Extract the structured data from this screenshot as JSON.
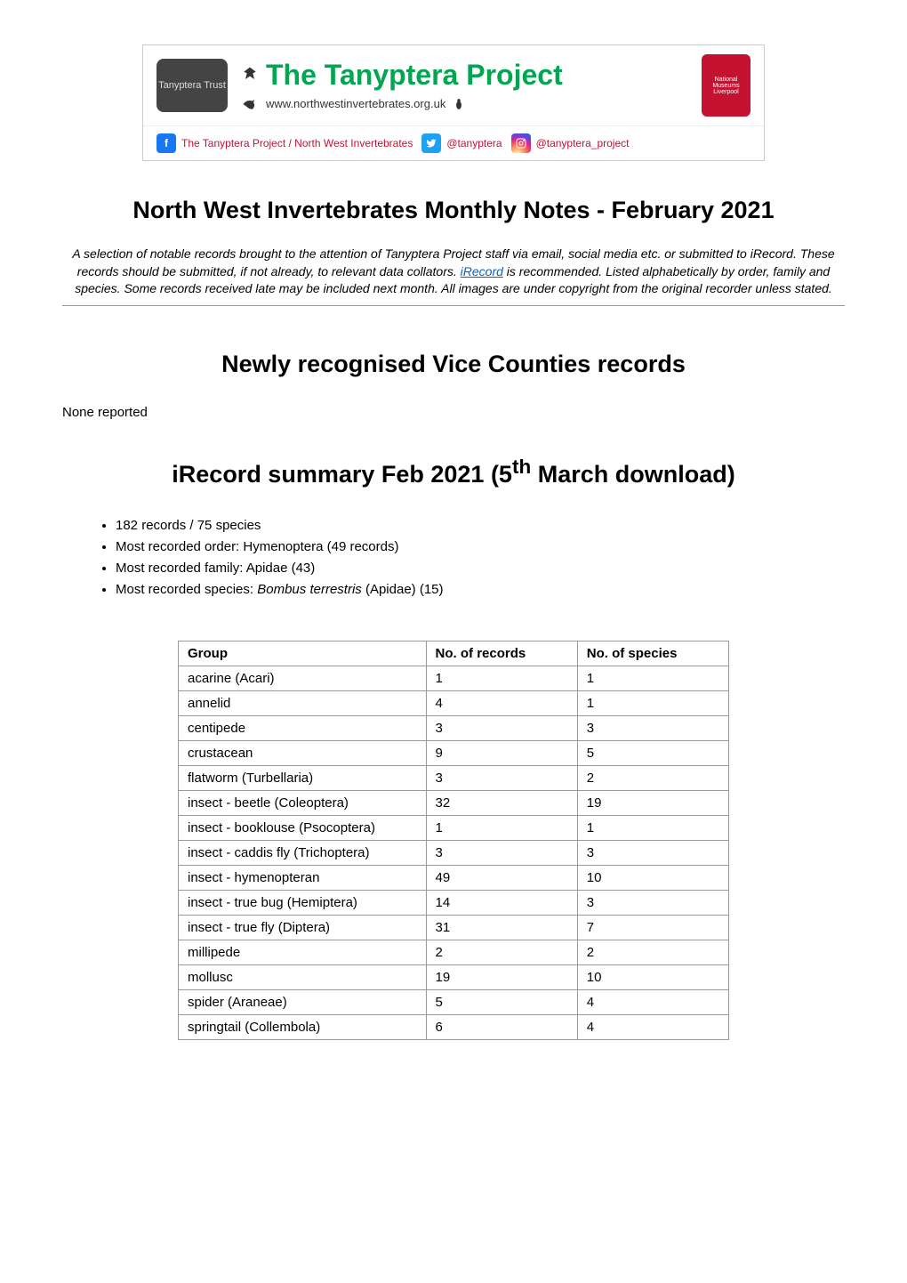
{
  "banner": {
    "logo_left_text": "Tanyptera Trust",
    "project_title": "The Tanyptera Project",
    "website_url": "www.northwestinvertebrates.org.uk",
    "social": {
      "facebook": "The Tanyptera Project / North West Invertebrates",
      "twitter": "@tanyptera",
      "instagram": "@tanyptera_project"
    },
    "logo_right_text": "National Museums Liverpool"
  },
  "main_title": "North West Invertebrates Monthly Notes - February 2021",
  "intro_text_1": "A selection of notable records brought to the attention of Tanyptera Project staff via email, social media etc. or submitted to iRecord. These records should be submitted, if not already, to relevant data collators. ",
  "intro_link_text": "iRecord",
  "intro_text_2": " is recommended. Listed alphabetically by order, family and species. Some records received late may be included next month. All images are under copyright from the original recorder unless stated.",
  "section_vice_counties": {
    "heading": "Newly recognised Vice Counties records",
    "body": "None reported"
  },
  "section_irecord": {
    "heading_prefix": "iRecord summary Feb 2021 (5",
    "heading_super": "th",
    "heading_suffix": " March download)",
    "bullets": [
      "182 records / 75 species",
      "Most recorded order: Hymenoptera (49 records)",
      "Most recorded family: Apidae (43)"
    ],
    "bullet_species_prefix": "Most recorded species: ",
    "bullet_species_italic": "Bombus terrestris",
    "bullet_species_suffix": " (Apidae) (15)"
  },
  "table": {
    "columns": [
      "Group",
      "No. of records",
      "No. of species"
    ],
    "rows": [
      [
        "acarine (Acari)",
        "1",
        "1"
      ],
      [
        "annelid",
        "4",
        "1"
      ],
      [
        "centipede",
        "3",
        "3"
      ],
      [
        "crustacean",
        "9",
        "5"
      ],
      [
        "flatworm (Turbellaria)",
        "3",
        "2"
      ],
      [
        "insect - beetle (Coleoptera)",
        "32",
        "19"
      ],
      [
        "insect - booklouse (Psocoptera)",
        "1",
        "1"
      ],
      [
        "insect - caddis fly (Trichoptera)",
        "3",
        "3"
      ],
      [
        "insect - hymenopteran",
        "49",
        "10"
      ],
      [
        "insect - true bug (Hemiptera)",
        "14",
        "3"
      ],
      [
        "insect - true fly (Diptera)",
        "31",
        "7"
      ],
      [
        "millipede",
        "2",
        "2"
      ],
      [
        "mollusc",
        "19",
        "10"
      ],
      [
        "spider (Araneae)",
        "5",
        "4"
      ],
      [
        "springtail (Collembola)",
        "6",
        "4"
      ]
    ]
  }
}
